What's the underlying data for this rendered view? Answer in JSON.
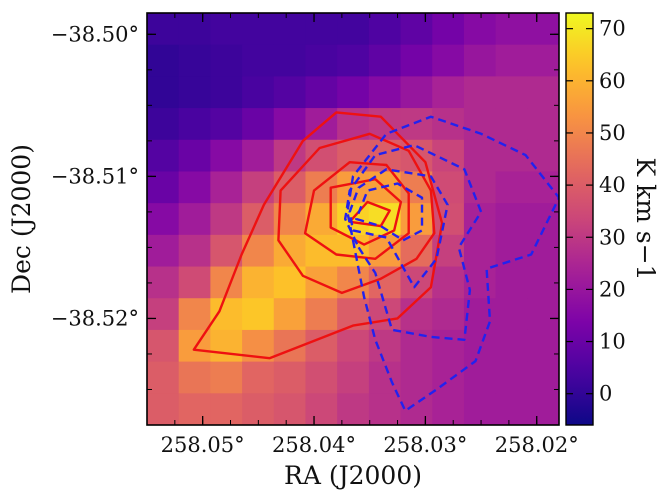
{
  "chart_data": {
    "type": "heatmap",
    "xlabel": "RA (J2000)",
    "ylabel": "Dec (J2000)",
    "colorbar_label": "K km s−1",
    "colormap": "plasma",
    "x_range": [
      258.055,
      258.018
    ],
    "y_range": [
      -38.5275,
      -38.4985
    ],
    "x_ticks": [
      {
        "value": 258.05,
        "label": "258.05°"
      },
      {
        "value": 258.04,
        "label": "258.04°"
      },
      {
        "value": 258.03,
        "label": "258.03°"
      },
      {
        "value": 258.02,
        "label": "258.02°"
      }
    ],
    "y_ticks": [
      {
        "value": -38.5,
        "label": "−38.50°"
      },
      {
        "value": -38.51,
        "label": "−38.51°"
      },
      {
        "value": -38.52,
        "label": "−38.52°"
      }
    ],
    "colorbar_range": [
      -6,
      73
    ],
    "colorbar_ticks": [
      0,
      10,
      20,
      30,
      40,
      50,
      60,
      70
    ],
    "grid_cols": 13,
    "grid_rows": 13,
    "grid_values": [
      [
        2,
        2,
        3,
        3,
        3,
        3,
        3,
        5,
        8,
        12,
        16,
        18,
        18
      ],
      [
        0,
        1,
        2,
        3,
        3,
        4,
        5,
        8,
        12,
        16,
        20,
        22,
        22
      ],
      [
        0,
        1,
        2,
        4,
        6,
        9,
        12,
        16,
        20,
        24,
        26,
        26,
        26
      ],
      [
        2,
        4,
        6,
        10,
        16,
        22,
        28,
        30,
        30,
        28,
        26,
        26,
        26
      ],
      [
        6,
        10,
        16,
        22,
        30,
        36,
        40,
        40,
        38,
        33,
        26,
        26,
        26
      ],
      [
        10,
        16,
        24,
        32,
        40,
        48,
        55,
        56,
        48,
        35,
        26,
        24,
        24
      ],
      [
        16,
        22,
        30,
        40,
        50,
        58,
        66,
        68,
        55,
        36,
        24,
        22,
        22
      ],
      [
        22,
        28,
        38,
        50,
        58,
        62,
        62,
        55,
        44,
        32,
        24,
        22,
        22
      ],
      [
        28,
        35,
        50,
        60,
        63,
        56,
        50,
        42,
        34,
        28,
        24,
        22,
        22
      ],
      [
        32,
        50,
        62,
        64,
        56,
        48,
        40,
        34,
        28,
        26,
        22,
        22,
        22
      ],
      [
        38,
        55,
        60,
        52,
        46,
        40,
        34,
        30,
        26,
        24,
        22,
        22,
        22
      ],
      [
        40,
        46,
        48,
        42,
        40,
        36,
        32,
        28,
        26,
        24,
        22,
        22,
        22
      ],
      [
        40,
        42,
        42,
        40,
        38,
        34,
        30,
        28,
        26,
        24,
        22,
        22,
        22
      ]
    ],
    "series": [
      {
        "color": "#ee1111",
        "style": "solid",
        "contours": [
          [
            [
              258.0508,
              -38.5222
            ],
            [
              258.0485,
              -38.5195
            ],
            [
              258.0465,
              -38.5155
            ],
            [
              258.0445,
              -38.512
            ],
            [
              258.041,
              -38.5075
            ],
            [
              258.038,
              -38.5055
            ],
            [
              258.034,
              -38.5058
            ],
            [
              258.03,
              -38.509
            ],
            [
              258.0285,
              -38.5133
            ],
            [
              258.0295,
              -38.5178
            ],
            [
              258.0325,
              -38.52
            ],
            [
              258.0365,
              -38.5205
            ],
            [
              258.044,
              -38.5228
            ],
            [
              258.0508,
              -38.5222
            ]
          ],
          [
            [
              258.0432,
              -38.5145
            ],
            [
              258.043,
              -38.511
            ],
            [
              258.0395,
              -38.508
            ],
            [
              258.035,
              -38.507
            ],
            [
              258.0315,
              -38.5082
            ],
            [
              258.0295,
              -38.511
            ],
            [
              258.0292,
              -38.514
            ],
            [
              258.0308,
              -38.5158
            ],
            [
              258.034,
              -38.5172
            ],
            [
              258.0375,
              -38.5182
            ],
            [
              258.041,
              -38.517
            ],
            [
              258.0432,
              -38.5145
            ]
          ],
          [
            [
              258.0408,
              -38.514
            ],
            [
              258.04,
              -38.511
            ],
            [
              258.0368,
              -38.509
            ],
            [
              258.0335,
              -38.5092
            ],
            [
              258.0315,
              -38.5112
            ],
            [
              258.0315,
              -38.514
            ],
            [
              258.0345,
              -38.5158
            ],
            [
              258.038,
              -38.5155
            ],
            [
              258.0408,
              -38.514
            ]
          ],
          [
            [
              258.0385,
              -38.5136
            ],
            [
              258.0385,
              -38.5108
            ],
            [
              258.0345,
              -38.5102
            ],
            [
              258.0322,
              -38.5118
            ],
            [
              258.0328,
              -38.5138
            ],
            [
              258.0355,
              -38.5148
            ],
            [
              258.0385,
              -38.5136
            ]
          ],
          [
            [
              258.0368,
              -38.5132
            ],
            [
              258.0352,
              -38.5118
            ],
            [
              258.0332,
              -38.5124
            ],
            [
              258.034,
              -38.5135
            ],
            [
              258.0368,
              -38.5132
            ]
          ]
        ]
      },
      {
        "color": "#2222ee",
        "style": "dashed",
        "contours": [
          [
            [
              258.0365,
              -38.5145
            ],
            [
              258.0355,
              -38.5185
            ],
            [
              258.0345,
              -38.5215
            ],
            [
              258.033,
              -38.5245
            ],
            [
              258.0318,
              -38.5265
            ],
            [
              258.029,
              -38.525
            ],
            [
              258.0255,
              -38.523
            ],
            [
              258.0242,
              -38.5202
            ],
            [
              258.0245,
              -38.5165
            ],
            [
              258.0205,
              -38.5155
            ],
            [
              258.018,
              -38.5115
            ],
            [
              258.021,
              -38.5085
            ],
            [
              258.025,
              -38.507
            ],
            [
              258.0295,
              -38.5058
            ],
            [
              258.0335,
              -38.507
            ],
            [
              258.0365,
              -38.51
            ],
            [
              258.037,
              -38.5125
            ],
            [
              258.0365,
              -38.5145
            ]
          ],
          [
            [
              258.036,
              -38.515
            ],
            [
              258.0345,
              -38.5168
            ],
            [
              258.033,
              -38.5208
            ],
            [
              258.0295,
              -38.5213
            ],
            [
              258.0265,
              -38.5215
            ],
            [
              258.026,
              -38.518
            ],
            [
              258.027,
              -38.515
            ],
            [
              258.025,
              -38.5125
            ],
            [
              258.0265,
              -38.5095
            ],
            [
              258.031,
              -38.5078
            ],
            [
              258.0345,
              -38.5085
            ],
            [
              258.0368,
              -38.511
            ],
            [
              258.0372,
              -38.513
            ],
            [
              258.036,
              -38.515
            ]
          ],
          [
            [
              258.0365,
              -38.5138
            ],
            [
              258.0335,
              -38.5143
            ],
            [
              258.031,
              -38.5178
            ],
            [
              258.029,
              -38.5158
            ],
            [
              258.028,
              -38.512
            ],
            [
              258.0295,
              -38.51
            ],
            [
              258.0335,
              -38.5095
            ],
            [
              258.036,
              -38.5108
            ],
            [
              258.0368,
              -38.5125
            ],
            [
              258.0365,
              -38.5138
            ]
          ],
          [
            [
              258.0362,
              -38.513
            ],
            [
              258.034,
              -38.5135
            ],
            [
              258.032,
              -38.5145
            ],
            [
              258.0303,
              -38.5138
            ],
            [
              258.0303,
              -38.5115
            ],
            [
              258.0325,
              -38.5105
            ],
            [
              258.0352,
              -38.511
            ],
            [
              258.0362,
              -38.513
            ]
          ]
        ]
      }
    ]
  }
}
